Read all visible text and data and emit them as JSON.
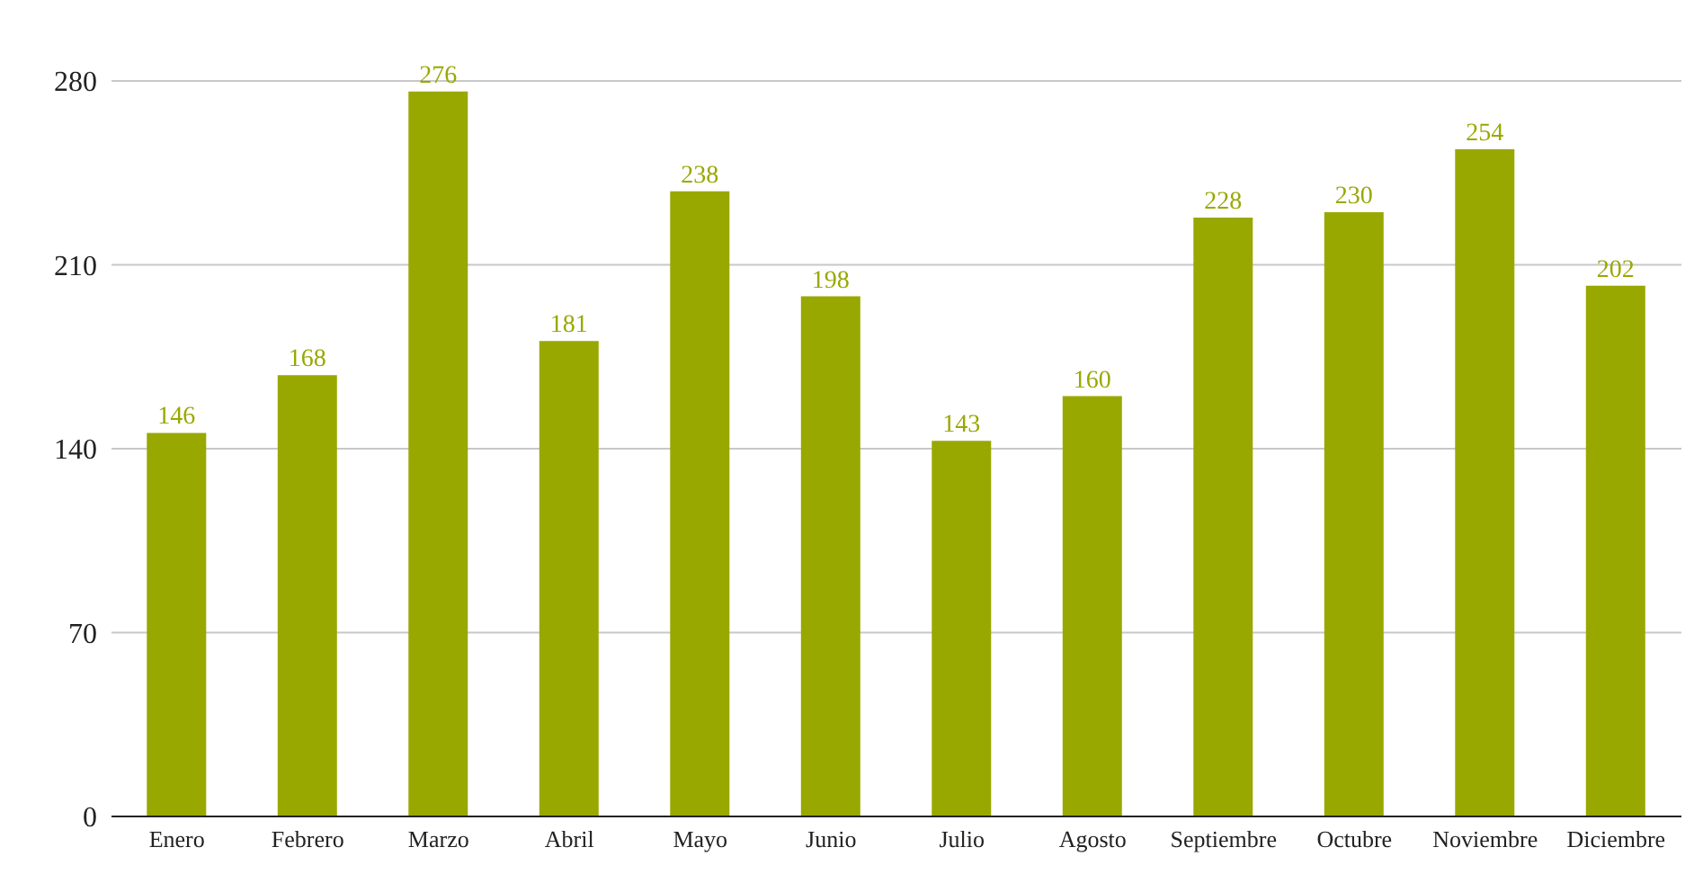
{
  "chart_data": {
    "type": "bar",
    "categories": [
      "Enero",
      "Febrero",
      "Marzo",
      "Abril",
      "Mayo",
      "Junio",
      "Julio",
      "Agosto",
      "Septiembre",
      "Octubre",
      "Noviembre",
      "Diciembre"
    ],
    "values": [
      146,
      168,
      276,
      181,
      238,
      198,
      143,
      160,
      228,
      230,
      254,
      202
    ],
    "color": "#99a800",
    "ylim": [
      0,
      280
    ],
    "yticks": [
      0,
      70,
      140,
      210,
      280
    ],
    "grid": "y",
    "data_labels": true
  }
}
